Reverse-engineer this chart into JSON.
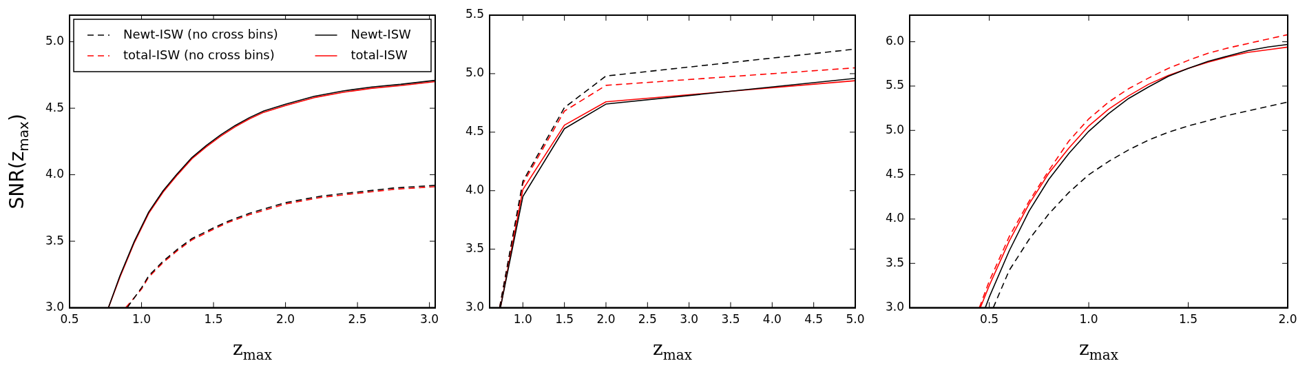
{
  "chart_data": [
    {
      "type": "line",
      "ylabel": "SNR(z$_{max}$)",
      "xlabel": "z$_{max}$",
      "xlim": [
        0.5,
        3.04
      ],
      "ylim": [
        3.0,
        5.2
      ],
      "xticks": [
        {
          "value": 0.5,
          "label": "0.5"
        },
        {
          "value": 1,
          "label": "1.0"
        },
        {
          "value": 1.5,
          "label": "1.5"
        },
        {
          "value": 2,
          "label": "2.0"
        },
        {
          "value": 2.5,
          "label": "2.5"
        },
        {
          "value": 3,
          "label": "3.0"
        }
      ],
      "yticks": [
        {
          "value": 3,
          "label": "3.0"
        },
        {
          "value": 3.5,
          "label": "3.5"
        },
        {
          "value": 4,
          "label": "4.0"
        },
        {
          "value": 4.5,
          "label": "4.5"
        },
        {
          "value": 5,
          "label": "5.0"
        }
      ],
      "legend": "top",
      "marker": "none",
      "series": [
        {
          "name": "Newt-ISW (no cross bins)",
          "color": "#000000",
          "line_style": "dashed",
          "x": [
            0.9,
            1.0,
            1.05,
            1.15,
            1.25,
            1.35,
            1.5,
            1.6,
            1.75,
            2.0,
            2.25,
            2.5,
            2.75,
            3.04
          ],
          "values": [
            3.0,
            3.15,
            3.24,
            3.35,
            3.44,
            3.52,
            3.6,
            3.65,
            3.71,
            3.79,
            3.84,
            3.87,
            3.9,
            3.92
          ]
        },
        {
          "name": "total-ISW (no cross bins)",
          "color": "#ff0000",
          "line_style": "dashed",
          "x": [
            0.89,
            1.0,
            1.05,
            1.15,
            1.25,
            1.35,
            1.5,
            1.6,
            1.75,
            2.0,
            2.25,
            2.5,
            2.75,
            3.04
          ],
          "values": [
            3.0,
            3.14,
            3.23,
            3.34,
            3.43,
            3.51,
            3.59,
            3.64,
            3.7,
            3.78,
            3.83,
            3.86,
            3.89,
            3.91
          ]
        },
        {
          "name": "Newt-ISW",
          "color": "#000000",
          "line_style": "solid",
          "x": [
            0.77,
            0.85,
            0.95,
            1.05,
            1.15,
            1.25,
            1.35,
            1.45,
            1.55,
            1.65,
            1.75,
            1.85,
            2.0,
            2.2,
            2.4,
            2.6,
            2.8,
            3.04
          ],
          "values": [
            3.0,
            3.24,
            3.5,
            3.72,
            3.88,
            4.01,
            4.13,
            4.22,
            4.3,
            4.37,
            4.43,
            4.48,
            4.53,
            4.59,
            4.63,
            4.66,
            4.68,
            4.71
          ]
        },
        {
          "name": "total-ISW",
          "color": "#ff0000",
          "line_style": "solid",
          "x": [
            0.77,
            0.85,
            0.95,
            1.05,
            1.15,
            1.25,
            1.35,
            1.45,
            1.55,
            1.65,
            1.75,
            1.85,
            2.0,
            2.2,
            2.4,
            2.6,
            2.8,
            3.04
          ],
          "values": [
            3.0,
            3.23,
            3.49,
            3.71,
            3.87,
            4.0,
            4.12,
            4.21,
            4.29,
            4.36,
            4.42,
            4.47,
            4.52,
            4.58,
            4.62,
            4.65,
            4.67,
            4.7
          ]
        }
      ]
    },
    {
      "type": "line",
      "xlabel": "z$_{max}$",
      "xlim": [
        0.6,
        5.0
      ],
      "ylim": [
        3.0,
        5.5
      ],
      "xticks": [
        {
          "value": 1,
          "label": "1.0"
        },
        {
          "value": 1.5,
          "label": "1.5"
        },
        {
          "value": 2,
          "label": "2.0"
        },
        {
          "value": 2.5,
          "label": "2.5"
        },
        {
          "value": 3,
          "label": "3.0"
        },
        {
          "value": 3.5,
          "label": "3.5"
        },
        {
          "value": 4,
          "label": "4.0"
        },
        {
          "value": 4.5,
          "label": "4.5"
        },
        {
          "value": 5,
          "label": "5.0"
        }
      ],
      "yticks": [
        {
          "value": 3,
          "label": "3.0"
        },
        {
          "value": 3.5,
          "label": "3.5"
        },
        {
          "value": 4,
          "label": "4.0"
        },
        {
          "value": 4.5,
          "label": "4.5"
        },
        {
          "value": 5,
          "label": "5.0"
        },
        {
          "value": 5.5,
          "label": "5.5"
        }
      ],
      "marker": "none",
      "series": [
        {
          "color": "#000000",
          "line_style": "dashed",
          "x": [
            0.72,
            1.0,
            1.5,
            2.0,
            5.0
          ],
          "values": [
            3.0,
            4.08,
            4.71,
            4.98,
            5.21
          ]
        },
        {
          "color": "#ff0000",
          "line_style": "dashed",
          "x": [
            0.72,
            1.0,
            1.5,
            2.0,
            5.0
          ],
          "values": [
            3.0,
            4.06,
            4.68,
            4.9,
            5.05
          ]
        },
        {
          "color": "#000000",
          "line_style": "solid",
          "x": [
            0.73,
            1.0,
            1.5,
            2.0,
            5.0
          ],
          "values": [
            3.0,
            3.95,
            4.53,
            4.74,
            4.96
          ]
        },
        {
          "color": "#ff0000",
          "line_style": "solid",
          "x": [
            0.73,
            1.0,
            1.5,
            2.0,
            5.0
          ],
          "values": [
            3.0,
            4.01,
            4.56,
            4.76,
            4.94
          ]
        }
      ]
    },
    {
      "type": "line",
      "xlabel": "z$_{max}$",
      "xlim": [
        0.1,
        2.0
      ],
      "ylim": [
        3.0,
        6.3
      ],
      "xticks": [
        {
          "value": 0.5,
          "label": "0.5"
        },
        {
          "value": 1,
          "label": "1.0"
        },
        {
          "value": 1.5,
          "label": "1.5"
        },
        {
          "value": 2,
          "label": "2.0"
        }
      ],
      "yticks": [
        {
          "value": 3,
          "label": "3.0"
        },
        {
          "value": 3.5,
          "label": "3.5"
        },
        {
          "value": 4,
          "label": "4.0"
        },
        {
          "value": 4.5,
          "label": "4.5"
        },
        {
          "value": 5,
          "label": "5.0"
        },
        {
          "value": 5.5,
          "label": "5.5"
        },
        {
          "value": 6,
          "label": "6.0"
        }
      ],
      "marker": "none",
      "series": [
        {
          "color": "#000000",
          "line_style": "dashed",
          "x": [
            0.52,
            0.6,
            0.7,
            0.8,
            0.9,
            1.0,
            1.1,
            1.2,
            1.3,
            1.4,
            1.5,
            1.6,
            1.7,
            1.8,
            1.9,
            2.0
          ],
          "values": [
            3.0,
            3.42,
            3.77,
            4.06,
            4.3,
            4.5,
            4.65,
            4.78,
            4.89,
            4.98,
            5.05,
            5.11,
            5.17,
            5.22,
            5.27,
            5.32
          ]
        },
        {
          "color": "#ff0000",
          "line_style": "dashed",
          "x": [
            0.45,
            0.5,
            0.6,
            0.7,
            0.8,
            0.9,
            1.0,
            1.1,
            1.2,
            1.3,
            1.4,
            1.5,
            1.6,
            1.7,
            1.8,
            1.9,
            2.0
          ],
          "values": [
            3.0,
            3.3,
            3.8,
            4.2,
            4.55,
            4.88,
            5.13,
            5.32,
            5.47,
            5.59,
            5.7,
            5.79,
            5.87,
            5.93,
            5.98,
            6.03,
            6.08
          ]
        },
        {
          "color": "#000000",
          "line_style": "solid",
          "x": [
            0.48,
            0.5,
            0.6,
            0.7,
            0.8,
            0.9,
            1.0,
            1.1,
            1.2,
            1.3,
            1.4,
            1.5,
            1.6,
            1.7,
            1.8,
            1.9,
            2.0
          ],
          "values": [
            3.0,
            3.12,
            3.64,
            4.09,
            4.45,
            4.74,
            4.99,
            5.19,
            5.36,
            5.49,
            5.61,
            5.7,
            5.78,
            5.84,
            5.9,
            5.94,
            5.97
          ]
        },
        {
          "color": "#ff0000",
          "line_style": "solid",
          "x": [
            0.455,
            0.5,
            0.6,
            0.7,
            0.8,
            0.9,
            1.0,
            1.1,
            1.2,
            1.3,
            1.4,
            1.5,
            1.6,
            1.7,
            1.8,
            1.9,
            2.0
          ],
          "values": [
            3.0,
            3.25,
            3.75,
            4.17,
            4.52,
            4.8,
            5.05,
            5.24,
            5.39,
            5.52,
            5.62,
            5.7,
            5.77,
            5.83,
            5.88,
            5.91,
            5.94
          ]
        }
      ]
    }
  ]
}
